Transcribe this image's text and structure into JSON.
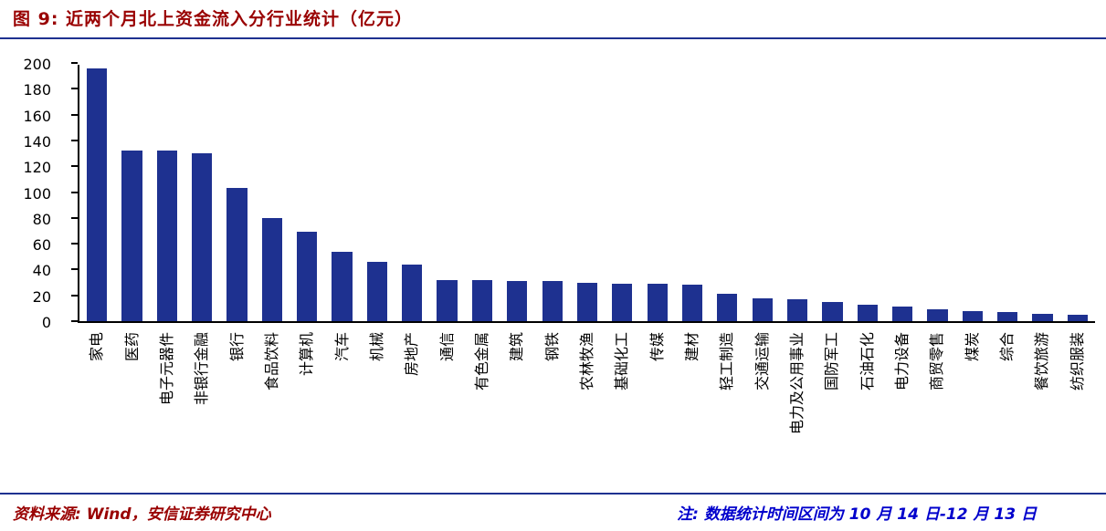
{
  "header": {
    "title": "图 9:  近两个月北上资金流入分行业统计（亿元）"
  },
  "footer": {
    "source": "资料来源: Wind，安信证券研究中心",
    "note": "注:  数据统计时间区间为 10 月 14 日-12 月 13 日"
  },
  "colors": {
    "bar": "#1e3190",
    "title": "#990000",
    "rule": "#1e3190",
    "source_text": "#990000",
    "note_text": "#0000cc",
    "axis": "#000000"
  },
  "chart_data": {
    "type": "bar",
    "title": "图 9: 近两个月北上资金流入分行业统计（亿元）",
    "unit": "亿元",
    "categories": [
      "家电",
      "医药",
      "电子元器件",
      "非银行金融",
      "银行",
      "食品饮料",
      "计算机",
      "汽车",
      "机械",
      "房地产",
      "通信",
      "有色金属",
      "建筑",
      "钢铁",
      "农林牧渔",
      "基础化工",
      "传媒",
      "建材",
      "轻工制造",
      "交通运输",
      "电力及公用事业",
      "国防军工",
      "石油石化",
      "电力设备",
      "商贸零售",
      "煤炭",
      "综合",
      "餐饮旅游",
      "纺织服装"
    ],
    "values": [
      196,
      132,
      132,
      130,
      103,
      80,
      69,
      54,
      46,
      44,
      32,
      32,
      31,
      31,
      30,
      29,
      29,
      28,
      21,
      18,
      17,
      15,
      13,
      11,
      9,
      8,
      7,
      6,
      5
    ],
    "xlabel": "",
    "ylabel": "",
    "ylim": [
      0,
      200
    ],
    "ytick_step": 20,
    "grid": false,
    "legend": false,
    "x_label_rotation": -90
  }
}
